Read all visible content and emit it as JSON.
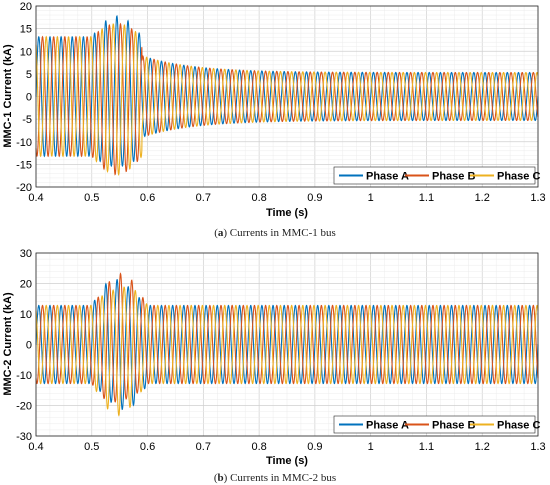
{
  "chart_data": [
    {
      "type": "line",
      "caption_letter": "a",
      "caption_text": "Currents in MMC-1 bus",
      "xlabel": "Time (s)",
      "ylabel": "MMC-1 Current (kA)",
      "xlim": [
        0.4,
        1.3
      ],
      "ylim": [
        -20,
        20
      ],
      "xticks": [
        "0.4",
        "0.5",
        "0.6",
        "0.7",
        "0.8",
        "0.9",
        "1",
        "1.1",
        "1.2",
        "1.3"
      ],
      "yticks": [
        "-20",
        "-15",
        "-10",
        "-5",
        "0",
        "5",
        "10",
        "15",
        "20"
      ],
      "grid": true,
      "legend_position": "bottom-right",
      "series": [
        {
          "name": "Phase A",
          "color": "#0072BD",
          "phase_deg": 0
        },
        {
          "name": "Phase B",
          "color": "#D95319",
          "phase_deg": -120
        },
        {
          "name": "Phase C",
          "color": "#EDB120",
          "phase_deg": 120
        }
      ],
      "frequency_hz": 50,
      "amplitude_profile": {
        "pre_fault_until": 0.5,
        "pre_fault_amplitude": 13.2,
        "fault_end": 0.59,
        "fault_peak_amplitude": 17.8,
        "post_fault_start_amplitude": 9,
        "steady_state_amplitude": 5.3
      }
    },
    {
      "type": "line",
      "caption_letter": "b",
      "caption_text": "Currents in MMC-2 bus",
      "xlabel": "Time (s)",
      "ylabel": "MMC-2 Current (kA)",
      "xlim": [
        0.4,
        1.3
      ],
      "ylim": [
        -30,
        30
      ],
      "xticks": [
        "0.4",
        "0.5",
        "0.6",
        "0.7",
        "0.8",
        "0.9",
        "1",
        "1.1",
        "1.2",
        "1.3"
      ],
      "yticks": [
        "-30",
        "-20",
        "-10",
        "0",
        "10",
        "20",
        "30"
      ],
      "grid": true,
      "legend_position": "bottom-right",
      "series": [
        {
          "name": "Phase A",
          "color": "#0072BD",
          "phase_deg": 0
        },
        {
          "name": "Phase B",
          "color": "#D95319",
          "phase_deg": -120
        },
        {
          "name": "Phase C",
          "color": "#EDB120",
          "phase_deg": 120
        }
      ],
      "frequency_hz": 50,
      "amplitude_profile": {
        "pre_fault_until": 0.5,
        "pre_fault_amplitude": 12.8,
        "fault_end": 0.6,
        "fault_peak_amplitude": 23.5,
        "post_fault_start_amplitude": 12.8,
        "steady_state_amplitude": 12.8
      }
    }
  ]
}
